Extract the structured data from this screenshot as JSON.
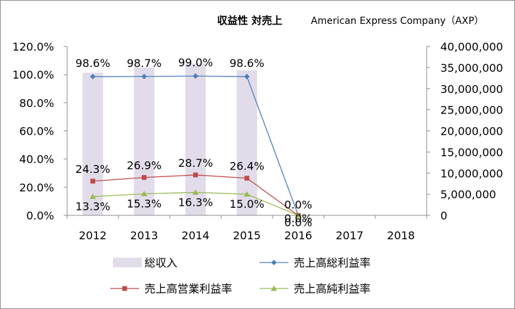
{
  "chart_data": {
    "type": "bar+line",
    "title": "収益性 対売上",
    "subtitle": "American Express Company（AXP）",
    "categories": [
      "2012",
      "2013",
      "2014",
      "2015",
      "2016",
      "2017",
      "2018"
    ],
    "y_left": {
      "ticks": [
        "0.0%",
        "20.0%",
        "40.0%",
        "60.0%",
        "80.0%",
        "100.0%",
        "120.0%"
      ],
      "range": [
        0,
        120
      ]
    },
    "y_right": {
      "ticks": [
        "0",
        "5,000,000",
        "10,000,000",
        "15,000,000",
        "20,000,000",
        "25,000,000",
        "30,000,000",
        "35,000,000",
        "40,000,000"
      ],
      "range": [
        0,
        40000000
      ]
    },
    "grid": false,
    "legend_position": "bottom",
    "bar_series": {
      "name": "総収入",
      "axis": "right",
      "color": "#e2dcea",
      "values": [
        33800000,
        35000000,
        36000000,
        34400000,
        null,
        null,
        null
      ]
    },
    "line_series": [
      {
        "name": "売上高総利益率",
        "axis": "left",
        "color": "#4a7ebb",
        "marker": "diamond",
        "values": [
          98.6,
          98.7,
          99.0,
          98.6,
          0.0
        ],
        "labels": [
          "98.6%",
          "98.7%",
          "99.0%",
          "98.6%",
          "0.0%"
        ]
      },
      {
        "name": "売上高営業利益率",
        "axis": "left",
        "color": "#be4b48",
        "marker": "square",
        "values": [
          24.3,
          26.9,
          28.7,
          26.4,
          0.0
        ],
        "labels": [
          "24.3%",
          "26.9%",
          "28.7%",
          "26.4%",
          "0.0%"
        ]
      },
      {
        "name": "売上高純利益率",
        "axis": "left",
        "color": "#98b954",
        "marker": "triangle",
        "values": [
          13.3,
          15.3,
          16.3,
          15.0,
          0.0
        ],
        "labels": [
          "13.3%",
          "15.3%",
          "16.3%",
          "15.0%",
          "0.0%"
        ]
      }
    ]
  }
}
